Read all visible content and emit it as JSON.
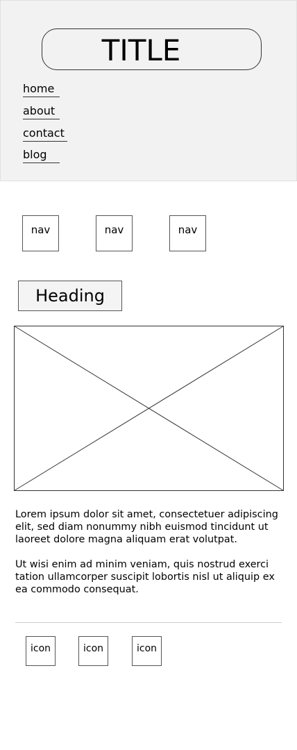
{
  "header": {
    "title": "TITLE",
    "menu": [
      "home",
      "about",
      "contact",
      "blog"
    ]
  },
  "nav": {
    "items": [
      "nav",
      "nav",
      "nav"
    ]
  },
  "main": {
    "heading": "Heading",
    "image": "image-placeholder",
    "paragraphs": [
      "Lorem ipsum dolor sit amet, consectetuer adipiscing elit, sed diam nonummy nibh euismod tincidunt ut laoreet dolore magna aliquam erat volutpat.",
      "Ut wisi enim ad minim veniam, quis nostrud exerci tation ullamcorper suscipit lobortis nisl ut aliquip ex ea commodo consequat."
    ]
  },
  "footer": {
    "icons": [
      "icon",
      "icon",
      "icon"
    ]
  },
  "colors": {
    "header_background": "#f2f2f2",
    "border": "#555555",
    "divider": "#cccccc"
  }
}
